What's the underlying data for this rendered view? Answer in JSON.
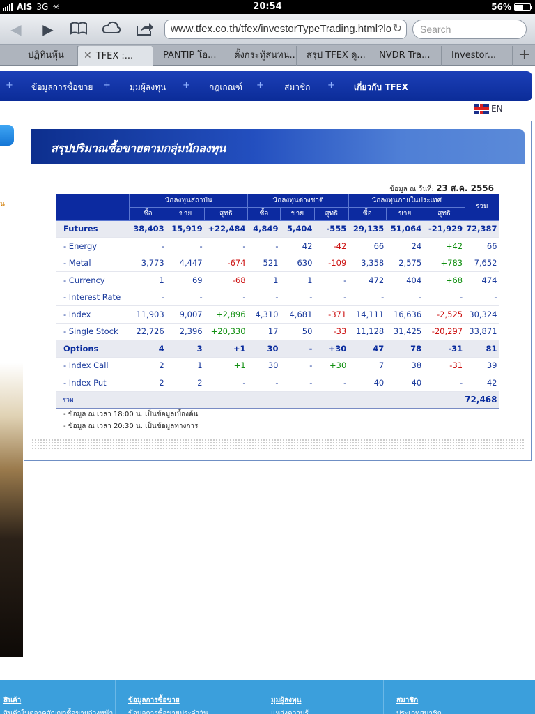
{
  "status": {
    "carrier": "AIS",
    "network": "3G",
    "time": "20:54",
    "battery": "56%",
    "battery_level": 0.56
  },
  "browser": {
    "url": "www.tfex.co.th/tfex/investorTypeTrading.html?lo",
    "search_placeholder": "Search",
    "tabs": [
      {
        "label": "ปฏิทินหุ้น",
        "active": false
      },
      {
        "label": "TFEX :...",
        "active": true
      },
      {
        "label": "PANTIP โอ...",
        "active": false
      },
      {
        "label": "ตั้งกระทู้สนทน...",
        "active": false
      },
      {
        "label": "สรุป TFEX ดู...",
        "active": false
      },
      {
        "label": "NVDR Tra...",
        "active": false
      },
      {
        "label": "Investor...",
        "active": false
      }
    ]
  },
  "nav": {
    "items": [
      "ข้อมูลการซื้อขาย",
      "มุมผู้ลงทุน",
      "กฎเกณฑ์",
      "สมาชิก",
      "เกี่ยวกับ TFEX"
    ],
    "lang": "EN"
  },
  "panel": {
    "title": "สรุปปริมาณซื้อขายตามกลุ่มนักลงทุน",
    "asof_label": "ข้อมูล ณ วันที่:",
    "asof_date": "23 ส.ค. 2556",
    "groups": [
      "นักลงทุนสถาบัน",
      "นักลงทุนต่างชาติ",
      "นักลงทุนภายในประเทศ"
    ],
    "sub_headers": [
      "ซื้อ",
      "ขาย",
      "สุทธิ"
    ],
    "total_header": "รวม",
    "rows": [
      {
        "label": "Futures",
        "group": true,
        "values": [
          "38,403",
          "15,919",
          "+22,484",
          "4,849",
          "5,404",
          "-555",
          "29,135",
          "51,064",
          "-21,929",
          "72,387"
        ]
      },
      {
        "label": "- Energy",
        "group": false,
        "values": [
          "-",
          "-",
          "-",
          "-",
          "42",
          "-42",
          "66",
          "24",
          "+42",
          "66"
        ]
      },
      {
        "label": "- Metal",
        "group": false,
        "values": [
          "3,773",
          "4,447",
          "-674",
          "521",
          "630",
          "-109",
          "3,358",
          "2,575",
          "+783",
          "7,652"
        ]
      },
      {
        "label": "- Currency",
        "group": false,
        "values": [
          "1",
          "69",
          "-68",
          "1",
          "1",
          "-",
          "472",
          "404",
          "+68",
          "474"
        ]
      },
      {
        "label": "- Interest Rate",
        "group": false,
        "values": [
          "-",
          "-",
          "-",
          "-",
          "-",
          "-",
          "-",
          "-",
          "-",
          "-"
        ]
      },
      {
        "label": "- Index",
        "group": false,
        "values": [
          "11,903",
          "9,007",
          "+2,896",
          "4,310",
          "4,681",
          "-371",
          "14,111",
          "16,636",
          "-2,525",
          "30,324"
        ]
      },
      {
        "label": "- Single Stock",
        "group": false,
        "values": [
          "22,726",
          "2,396",
          "+20,330",
          "17",
          "50",
          "-33",
          "11,128",
          "31,425",
          "-20,297",
          "33,871"
        ]
      },
      {
        "label": "Options",
        "group": true,
        "values": [
          "4",
          "3",
          "+1",
          "30",
          "-",
          "+30",
          "47",
          "78",
          "-31",
          "81"
        ]
      },
      {
        "label": "- Index Call",
        "group": false,
        "values": [
          "2",
          "1",
          "+1",
          "30",
          "-",
          "+30",
          "7",
          "38",
          "-31",
          "39"
        ]
      },
      {
        "label": "- Index Put",
        "group": false,
        "values": [
          "2",
          "2",
          "-",
          "-",
          "-",
          "-",
          "40",
          "40",
          "-",
          "42"
        ]
      }
    ],
    "total_label": "รวม",
    "total_value": "72,468",
    "notes": [
      "- ข้อมูล ณ เวลา 18:00 น. เป็นข้อมูลเบื้องต้น",
      "- ข้อมูล ณ เวลา 20:30 น. เป็นข้อมูลทางการ"
    ]
  },
  "side": {
    "note": "น"
  },
  "footer": {
    "cols": [
      {
        "heading": "สินค้า",
        "sub": "สินค้าในตลาดสัญญาซื้อขายล่วงหน้า"
      },
      {
        "heading": "ข้อมูลการซื้อขาย",
        "sub": "ข้อมูลการซื้อขายประจำวัน"
      },
      {
        "heading": "มุมผู้ลงทุน",
        "sub": "แหล่งความรู้"
      },
      {
        "heading": "สมาชิก",
        "sub": "ประเภทสมาชิก"
      }
    ]
  }
}
